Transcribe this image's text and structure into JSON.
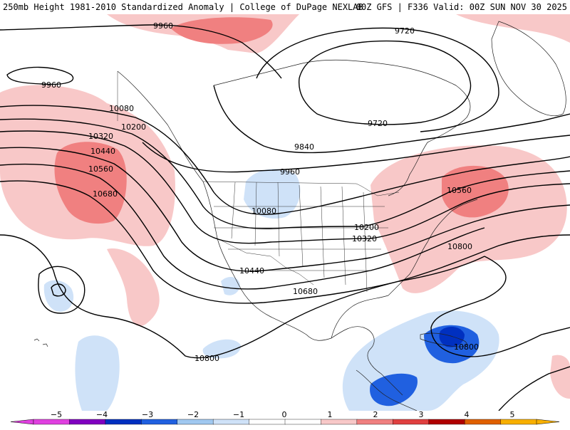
{
  "header": {
    "title_left": "250mb Height 1981-2010 Standardized Anomaly | College of DuPage NEXLAB",
    "title_right": "00Z GFS | F336 Valid: 00Z SUN NOV 30 2025"
  },
  "contour_labels": [
    {
      "id": "c9960a",
      "text": "9960"
    },
    {
      "id": "c9960b",
      "text": "9960"
    },
    {
      "id": "c9720a",
      "text": "9720"
    },
    {
      "id": "c9720b",
      "text": "9720"
    },
    {
      "id": "c9840",
      "text": "9840"
    },
    {
      "id": "c9960c",
      "text": "9960"
    },
    {
      "id": "c10080a",
      "text": "10080"
    },
    {
      "id": "c10200a",
      "text": "10200"
    },
    {
      "id": "c10320a",
      "text": "10320"
    },
    {
      "id": "c10440a",
      "text": "10440"
    },
    {
      "id": "c10560a",
      "text": "10560"
    },
    {
      "id": "c10680a",
      "text": "10680"
    },
    {
      "id": "c10080b",
      "text": "10080"
    },
    {
      "id": "c10200b",
      "text": "10200"
    },
    {
      "id": "c10320b",
      "text": "10320"
    },
    {
      "id": "c10440b",
      "text": "10440"
    },
    {
      "id": "c10680b",
      "text": "10680"
    },
    {
      "id": "c10560b",
      "text": "10560"
    },
    {
      "id": "c10800a",
      "text": "10800"
    },
    {
      "id": "c10800b",
      "text": "10800"
    },
    {
      "id": "c10800c",
      "text": "10800"
    }
  ],
  "colorbar": {
    "ticks": [
      "−5",
      "−4",
      "−3",
      "−2",
      "−1",
      "0",
      "1",
      "2",
      "3",
      "4",
      "5"
    ],
    "colors": [
      "#e040e0",
      "#8000c0",
      "#0030c0",
      "#2060e0",
      "#a0c8f0",
      "#cfe2f8",
      "#ffffff",
      "#ffffff",
      "#f8c8c8",
      "#f08080",
      "#e04040",
      "#b00000",
      "#e06000",
      "#f8b000"
    ]
  }
}
